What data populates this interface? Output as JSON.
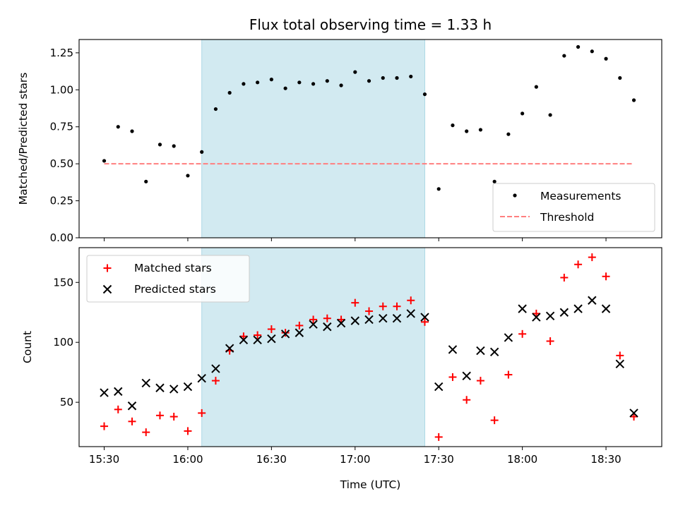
{
  "chart_data": [
    {
      "type": "scatter",
      "title": "Flux total observing time = 1.33 h",
      "xlabel": "",
      "ylabel": "Matched/Predicted stars",
      "ylim": [
        0.0,
        1.34
      ],
      "yticks": [
        "0.00",
        "0.25",
        "0.50",
        "0.75",
        "1.00",
        "1.25"
      ],
      "ytick_values": [
        0.0,
        0.25,
        0.5,
        0.75,
        1.0,
        1.25
      ],
      "highlight_span": {
        "start": "16:05",
        "end": "17:25",
        "color": "#add8e6"
      },
      "threshold": {
        "name": "Threshold",
        "value": 0.5,
        "from": "15:30",
        "to": "18:40",
        "color": "#ff7f7f"
      },
      "legend": {
        "position": "lower-right",
        "entries": [
          "Measurements",
          "Threshold"
        ]
      },
      "series": [
        {
          "name": "Measurements",
          "marker": "dot",
          "color": "#000000",
          "x": [
            "15:30",
            "15:35",
            "15:40",
            "15:45",
            "15:50",
            "15:55",
            "16:00",
            "16:05",
            "16:10",
            "16:15",
            "16:20",
            "16:25",
            "16:30",
            "16:35",
            "16:40",
            "16:45",
            "16:50",
            "16:55",
            "17:00",
            "17:05",
            "17:10",
            "17:15",
            "17:20",
            "17:25",
            "17:30",
            "17:35",
            "17:40",
            "17:45",
            "17:50",
            "17:55",
            "18:00",
            "18:05",
            "18:10",
            "18:15",
            "18:20",
            "18:25",
            "18:30",
            "18:35",
            "18:40"
          ],
          "y": [
            0.52,
            0.75,
            0.72,
            0.38,
            0.63,
            0.62,
            0.42,
            0.58,
            0.87,
            0.98,
            1.04,
            1.05,
            1.07,
            1.01,
            1.05,
            1.04,
            1.06,
            1.03,
            1.12,
            1.06,
            1.08,
            1.08,
            1.09,
            0.97,
            0.33,
            0.76,
            0.72,
            0.73,
            0.38,
            0.7,
            0.84,
            1.02,
            0.83,
            1.23,
            1.29,
            1.26,
            1.21,
            1.08,
            0.93
          ]
        }
      ]
    },
    {
      "type": "scatter",
      "title": "",
      "xlabel": "Time (UTC)",
      "ylabel": "Count",
      "xlim": [
        "15:21",
        "18:50"
      ],
      "ylim": [
        13,
        179
      ],
      "xticks": [
        "15:30",
        "16:00",
        "16:30",
        "17:00",
        "17:30",
        "18:00",
        "18:30"
      ],
      "yticks": [
        "50",
        "100",
        "150"
      ],
      "ytick_values": [
        50,
        100,
        150
      ],
      "highlight_span": {
        "start": "16:05",
        "end": "17:25",
        "color": "#add8e6"
      },
      "legend": {
        "position": "top-left",
        "entries": [
          "Matched stars",
          "Predicted stars"
        ]
      },
      "series": [
        {
          "name": "Matched stars",
          "marker": "plus",
          "color": "#ff0000",
          "x": [
            "15:30",
            "15:35",
            "15:40",
            "15:45",
            "15:50",
            "15:55",
            "16:00",
            "16:05",
            "16:10",
            "16:15",
            "16:20",
            "16:25",
            "16:30",
            "16:35",
            "16:40",
            "16:45",
            "16:50",
            "16:55",
            "17:00",
            "17:05",
            "17:10",
            "17:15",
            "17:20",
            "17:25",
            "17:30",
            "17:35",
            "17:40",
            "17:45",
            "17:50",
            "17:55",
            "18:00",
            "18:05",
            "18:10",
            "18:15",
            "18:20",
            "18:25",
            "18:30",
            "18:35",
            "18:40"
          ],
          "y": [
            30,
            44,
            34,
            25,
            39,
            38,
            26,
            41,
            68,
            93,
            105,
            106,
            111,
            108,
            114,
            119,
            120,
            119,
            133,
            126,
            130,
            130,
            135,
            117,
            21,
            71,
            52,
            68,
            35,
            73,
            107,
            124,
            101,
            154,
            165,
            171,
            155,
            89,
            38
          ]
        },
        {
          "name": "Predicted stars",
          "marker": "x",
          "color": "#000000",
          "x": [
            "15:30",
            "15:35",
            "15:40",
            "15:45",
            "15:50",
            "15:55",
            "16:00",
            "16:05",
            "16:10",
            "16:15",
            "16:20",
            "16:25",
            "16:30",
            "16:35",
            "16:40",
            "16:45",
            "16:50",
            "16:55",
            "17:00",
            "17:05",
            "17:10",
            "17:15",
            "17:20",
            "17:25",
            "17:30",
            "17:35",
            "17:40",
            "17:45",
            "17:50",
            "17:55",
            "18:00",
            "18:05",
            "18:10",
            "18:15",
            "18:20",
            "18:25",
            "18:30",
            "18:35",
            "18:40"
          ],
          "y": [
            58,
            59,
            47,
            66,
            62,
            61,
            63,
            70,
            78,
            95,
            102,
            102,
            103,
            107,
            108,
            115,
            113,
            116,
            118,
            119,
            120,
            120,
            124,
            121,
            63,
            94,
            72,
            93,
            92,
            104,
            128,
            121,
            122,
            125,
            128,
            135,
            128,
            82,
            41
          ]
        }
      ]
    }
  ]
}
